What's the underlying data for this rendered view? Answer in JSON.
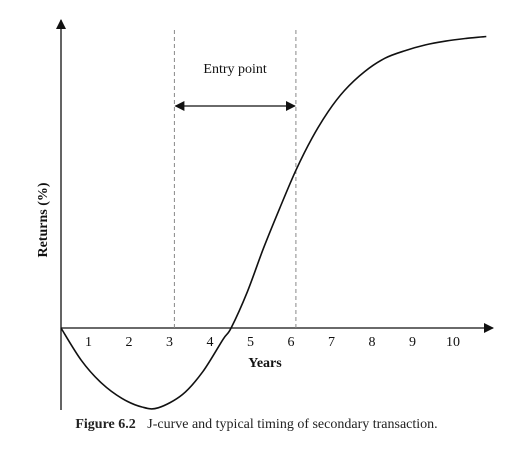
{
  "chart_data": {
    "type": "line",
    "xlabel": "Years",
    "ylabel": "Returns (%)",
    "x_ticks": [
      "1",
      "2",
      "3",
      "4",
      "5",
      "6",
      "7",
      "8",
      "9",
      "10"
    ],
    "xlim": [
      0,
      10.6
    ],
    "ylim": [
      -2.2,
      7.7
    ],
    "grid": false,
    "annotation": {
      "label": "Entry point",
      "x_range": [
        2.8,
        5.8
      ]
    },
    "series": [
      {
        "x": [
          0,
          0.5,
          1,
          1.5,
          2,
          2.4,
          3,
          3.5,
          4,
          4.2,
          4.6,
          5,
          5.4,
          5.8,
          6.2,
          6.6,
          7,
          7.5,
          8,
          8.5,
          9,
          9.5,
          10,
          10.5
        ],
        "y": [
          0,
          -0.85,
          -1.45,
          -1.85,
          -2.08,
          -2.1,
          -1.75,
          -1.15,
          -0.3,
          0,
          0.95,
          2.1,
          3.15,
          4.15,
          5.0,
          5.7,
          6.25,
          6.75,
          7.1,
          7.3,
          7.45,
          7.55,
          7.62,
          7.67
        ]
      }
    ]
  },
  "caption": {
    "figure_label": "Figure 6.2",
    "text": "J-curve and typical timing of secondary transaction."
  }
}
